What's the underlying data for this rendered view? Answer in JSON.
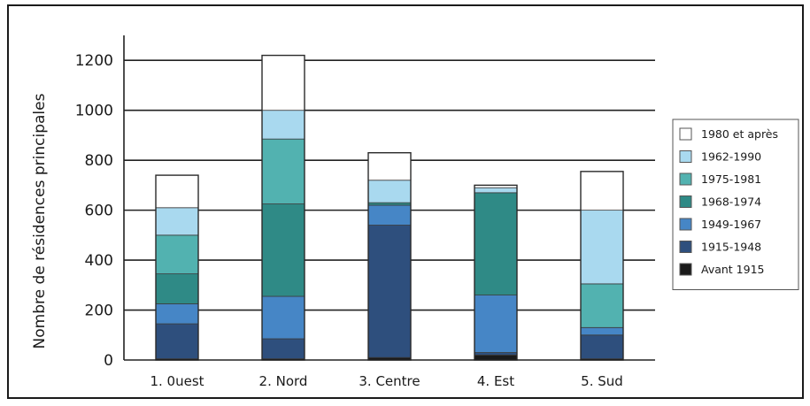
{
  "chart_data": {
    "type": "bar",
    "stacked": true,
    "title": "",
    "xlabel": "",
    "ylabel": "Nombre de résidences principales",
    "ylim": [
      0,
      1300
    ],
    "yticks": [
      0,
      200,
      400,
      600,
      800,
      1000,
      1200
    ],
    "categories": [
      "1. 0uest",
      "2. Nord",
      "3. Centre",
      "4. Est",
      "5. Sud"
    ],
    "legend_position": "right",
    "series": [
      {
        "name": "Avant 1915",
        "color": "#1a1a1a",
        "values": [
          5,
          5,
          10,
          20,
          5
        ]
      },
      {
        "name": "1915-1948",
        "color": "#2e4f7d",
        "values": [
          140,
          80,
          530,
          10,
          95
        ]
      },
      {
        "name": "1949-1967",
        "color": "#4686c6",
        "values": [
          80,
          170,
          80,
          230,
          30
        ]
      },
      {
        "name": "1968-1974",
        "color": "#2f8a86",
        "values": [
          120,
          370,
          10,
          410,
          0
        ]
      },
      {
        "name": "1975-1981",
        "color": "#52b2b0",
        "values": [
          155,
          260,
          0,
          0,
          175
        ]
      },
      {
        "name": "1962-1990",
        "color": "#a9d9ef",
        "values": [
          110,
          115,
          90,
          20,
          295
        ]
      },
      {
        "name": "1980 et après",
        "color": "#ffffff",
        "values": [
          130,
          220,
          110,
          10,
          155
        ]
      }
    ]
  }
}
